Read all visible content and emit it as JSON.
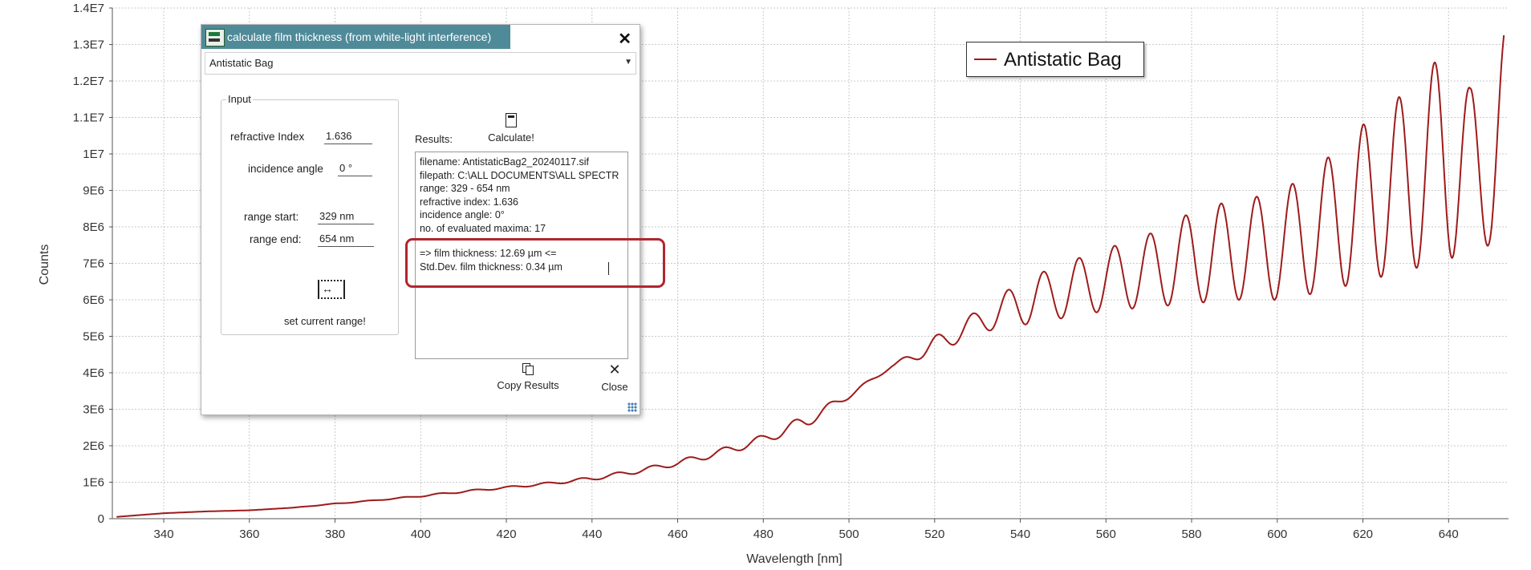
{
  "chart_data": {
    "type": "line",
    "xlabel": "Wavelength [nm]",
    "ylabel": "Counts",
    "xlim": [
      328,
      654
    ],
    "ylim": [
      0,
      14000000
    ],
    "x_ticks": [
      340,
      360,
      380,
      400,
      420,
      440,
      460,
      480,
      500,
      520,
      540,
      560,
      580,
      600,
      620,
      640
    ],
    "y_ticks": [
      0,
      1000000,
      2000000,
      3000000,
      4000000,
      5000000,
      6000000,
      7000000,
      8000000,
      9000000,
      10000000,
      11000000,
      12000000,
      13000000,
      14000000
    ],
    "y_tick_labels": [
      "0",
      "1E6",
      "2E6",
      "3E6",
      "4E6",
      "5E6",
      "6E6",
      "7E6",
      "8E6",
      "9E6",
      "1E7",
      "1.1E7",
      "1.2E7",
      "1.3E7",
      "1.4E7"
    ],
    "grid": true,
    "legend_position": "top-right",
    "series": [
      {
        "name": "Antistatic Bag",
        "color": "#9e1b1b",
        "x": [
          329,
          340,
          350,
          360,
          370,
          380,
          390,
          400,
          410,
          420,
          430,
          440,
          450,
          460,
          470,
          480,
          490,
          500,
          510,
          520,
          530,
          540,
          550,
          560,
          570,
          580,
          590,
          600,
          610,
          620,
          630,
          640,
          645,
          650,
          653
        ],
        "upper": [
          50000,
          150000,
          200000,
          230000,
          300000,
          420000,
          520000,
          640000,
          770000,
          880000,
          1000000,
          1150000,
          1350000,
          1600000,
          1920000,
          2300000,
          2850000,
          3450000,
          4200000,
          5000000,
          5700000,
          6500000,
          7000000,
          7400000,
          7800000,
          8400000,
          8750000,
          8900000,
          9700000,
          10800000,
          11700000,
          12900000,
          11800000,
          12000000,
          13400000
        ],
        "lower": [
          50000,
          150000,
          200000,
          230000,
          300000,
          400000,
          500000,
          600000,
          720000,
          830000,
          930000,
          1050000,
          1230000,
          1450000,
          1720000,
          2050000,
          2500000,
          3300000,
          4150000,
          4500000,
          5100000,
          5300000,
          5500000,
          5700000,
          5800000,
          5900000,
          6000000,
          6000000,
          6200000,
          6500000,
          6800000,
          7100000,
          7400000,
          7500000,
          8000000
        ],
        "fringe_period": 8.3
      }
    ]
  },
  "dialog": {
    "title": "calculate film thickness (from white-light interference)",
    "close_glyph": "✕",
    "sample_select": "Antistatic Bag",
    "input_group": "Input",
    "refractive_index_label": "refractive Index",
    "refractive_index_value": "1.636",
    "incidence_angle_label": "incidence angle",
    "incidence_angle_value": "0 °",
    "range_start_label": "range start:",
    "range_start_value": "329 nm",
    "range_end_label": "range end:",
    "range_end_value": "654 nm",
    "range_icon": "range-select-icon",
    "set_range_label": "set current range!",
    "results_label": "Results:",
    "calculate_label": "Calculate!",
    "results_lines": [
      "filename: AntistaticBag2_20240117.sif",
      "filepath: C:\\ALL DOCUMENTS\\ALL SPECTR",
      "range:   329 - 654 nm",
      "refractive index: 1.636",
      "incidence angle: 0°",
      "no. of evaluated maxima: 17"
    ],
    "result_thickness": "=>  film thickness:  12.69 µm  <=",
    "result_stddev": "Std.Dev. film thickness: 0.34 µm",
    "copy_label": "Copy Results",
    "close_label": "Close",
    "highlight_color": "#b0262e",
    "titlebar_color": "#4f8a99"
  }
}
